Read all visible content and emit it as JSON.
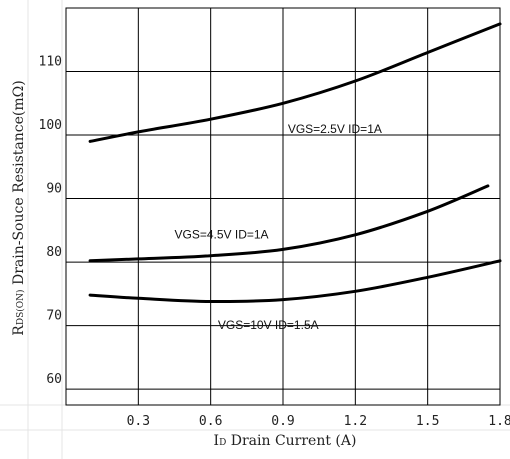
{
  "chart_data": {
    "type": "line",
    "xlabel_prefix": "I",
    "xlabel_sub": "D",
    "xlabel": " Drain Current (A)",
    "ylabel_prefix": "R",
    "ylabel_sub": "DS(ON)",
    "ylabel": " Drain-Souce Resistance(mΩ)",
    "xlim": [
      0.0,
      1.8
    ],
    "ylim": [
      57.5,
      120
    ],
    "x_ticks": [
      "0.3",
      "0.6",
      "0.9",
      "1.2",
      "1.5",
      "1.8"
    ],
    "y_ticks": [
      "60",
      "70",
      "80",
      "90",
      "100",
      "110"
    ],
    "grid": true,
    "series": [
      {
        "name": "VGS=2.5V ID=1A",
        "x": [
          0.1,
          0.3,
          0.6,
          0.9,
          1.2,
          1.5,
          1.8
        ],
        "values": [
          99.0,
          100.5,
          102.5,
          105.0,
          108.5,
          113.0,
          117.5
        ]
      },
      {
        "name": "VGS=4.5V ID=1A",
        "x": [
          0.1,
          0.3,
          0.6,
          0.9,
          1.2,
          1.5,
          1.75
        ],
        "values": [
          80.2,
          80.5,
          81.0,
          82.0,
          84.3,
          88.0,
          92.0
        ]
      },
      {
        "name": "VGS=10V ID=1.5A",
        "x": [
          0.1,
          0.3,
          0.6,
          0.9,
          1.2,
          1.5,
          1.8
        ],
        "values": [
          74.8,
          74.3,
          73.8,
          74.1,
          75.4,
          77.6,
          80.2
        ]
      }
    ]
  }
}
